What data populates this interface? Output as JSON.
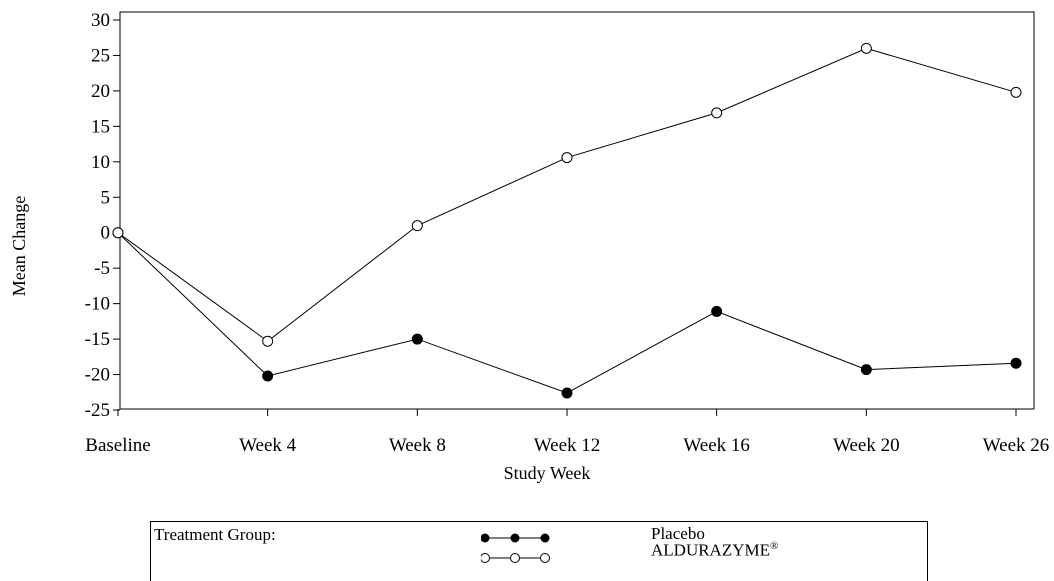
{
  "chart_data": {
    "type": "line",
    "xlabel": "Study Week",
    "ylabel": "Mean Change",
    "categories": [
      "Baseline",
      "Week 4",
      "Week 8",
      "Week 12",
      "Week 16",
      "Week 20",
      "Week 26"
    ],
    "ylim": [
      -25,
      30
    ],
    "yticks": [
      30,
      25,
      20,
      15,
      10,
      5,
      0,
      -5,
      -10,
      -15,
      -20,
      -25
    ],
    "grid": false,
    "legend_position": "bottom",
    "series": [
      {
        "name": "Placebo",
        "marker": "filled-circle",
        "color": "#000000",
        "values": [
          0,
          -20.2,
          -15.0,
          -22.6,
          -11.1,
          -19.3,
          -18.4
        ]
      },
      {
        "name": "ALDURAZYME",
        "marker": "open-circle",
        "color": "#000000",
        "values": [
          0,
          -15.3,
          1.0,
          10.6,
          16.9,
          26.0,
          19.8
        ]
      }
    ]
  },
  "legend": {
    "title": "Treatment Group:",
    "placebo_label": "Placebo",
    "alder_label": "ALDURAZYME",
    "alder_mark": "®"
  }
}
